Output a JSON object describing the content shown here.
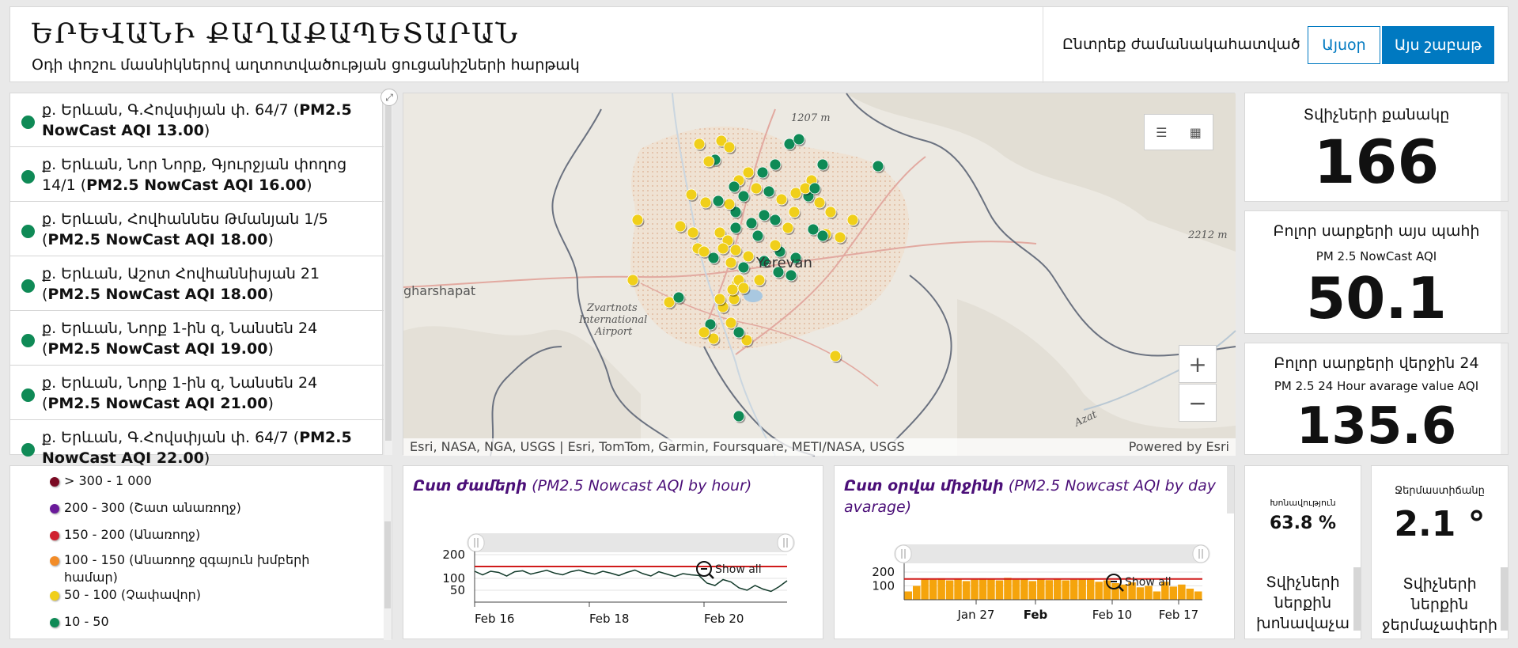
{
  "header": {
    "title": "ԵՐԵՎԱՆԻ ՔԱՂԱՔԱՊԵՏԱՐԱՆ",
    "subtitle": "Օդի փոշու մասնիկներով աղտոտվածության ցուցանիշների հարթակ",
    "period_label": "Ընտրեք ժամանակահատված",
    "today_label": "Այսօր",
    "week_label": "Այս շաբաթ"
  },
  "stations": [
    {
      "name": "ք. Երևան, Գ.Հովսփյան փ. 64/7 (",
      "aqi": "PM2.5 NowCast AQI 13.00",
      "close": ")"
    },
    {
      "name": "ք. Երևան, Նոր Նորք, Գյուրջյան փողոց 14/1 (",
      "aqi": "PM2.5 NowCast AQI 16.00",
      "close": ")"
    },
    {
      "name": "ք. Երևան, Հովհաննես Թմանյան 1/5 (",
      "aqi": "PM2.5 NowCast AQI 18.00",
      "close": ")"
    },
    {
      "name": "ք. Երևան, Աշոտ Հովհաննիսյան 21 (",
      "aqi": "PM2.5 NowCast AQI 18.00",
      "close": ")"
    },
    {
      "name": "ք. Երևան, Նորք 1-ին զ, Նանսեն 24 (",
      "aqi": "PM2.5 NowCast AQI 19.00",
      "close": ")"
    },
    {
      "name": "ք. Երևան, Նորք 1-ին զ, Նանսեն 24 (",
      "aqi": "PM2.5 NowCast AQI 21.00",
      "close": ")"
    },
    {
      "name": "ք. Երևան, Գ.Հովսփյան փ. 64/7 (",
      "aqi": "PM2.5 NowCast AQI 22.00",
      "close": ")"
    }
  ],
  "map": {
    "labels": {
      "elev1": "1207 m",
      "elev2": "2212 m",
      "city": "Yerevan",
      "town": "gharshapat",
      "airport1": "Zvartnots",
      "airport2": "International",
      "airport3": "Airport",
      "river": "Azat"
    },
    "attribution": "Esri, NASA, NGA, USGS | Esri, TomTom, Garmin, Foursquare, METI/NASA, USGS",
    "powered_by": "Powered by Esri",
    "zoom_in": "+",
    "zoom_out": "−",
    "colors": {
      "green": "#0f8a56",
      "yellow": "#f0cf1a"
    }
  },
  "indicators": {
    "sensor_count": {
      "title": "Տվիչների քանակը",
      "value": "166"
    },
    "current_aqi": {
      "title": "Բոլոր սարքերի այս պահի",
      "subtitle": "PM 2.5 NowCast AQI",
      "value": "50.1"
    },
    "avg24": {
      "title": "Բոլոր սարքերի վերջին 24",
      "subtitle": "PM 2.5 24 Hour avarage value AQI",
      "value": "135.6"
    },
    "humidity": {
      "title": "Խոնավություն",
      "value": "63.8 %",
      "footer": [
        "Տվիչների",
        "ներքին",
        "խոնավաչա"
      ]
    },
    "temperature": {
      "title": "Ջերմաստիճանը",
      "value": "2.1 °",
      "footer": [
        "Տվիչների",
        "ներքին",
        "ջերմաչափերի"
      ]
    }
  },
  "legend": [
    {
      "label": "> 300 - 1 000",
      "color": "#7a0a23"
    },
    {
      "label": "200 - 300 (Շատ անառողջ)",
      "color": "#6a1a9a"
    },
    {
      "label": "150 - 200 (Անառողջ)",
      "color": "#d0202f"
    },
    {
      "label": "100 - 150 (Անառողջ զգայուն խմբերի",
      "label2": "համար)",
      "color": "#f28c28"
    },
    {
      "label": "50 - 100 (Չափավոր)",
      "color": "#f0cf1a"
    },
    {
      "label": "10 - 50",
      "color": "#0f8a56"
    }
  ],
  "chart_data": [
    {
      "type": "line",
      "title_bold": "Ըստ ժամերի",
      "title_rest": " (PM2.5 Nowcast AQI by hour)",
      "x_ticks": [
        "Feb 16",
        "Feb 18",
        "Feb 20"
      ],
      "y_ticks": [
        200,
        100,
        50
      ],
      "threshold": 150,
      "show_all": "Show all",
      "values": [
        130,
        115,
        130,
        125,
        110,
        128,
        132,
        118,
        126,
        134,
        122,
        115,
        128,
        135,
        125,
        118,
        130,
        122,
        112,
        125,
        135,
        120,
        110,
        128,
        118,
        108,
        120,
        115,
        112,
        80,
        70,
        95,
        85,
        60,
        50,
        70,
        55,
        45,
        65,
        90
      ],
      "line_color": "#123a2a",
      "threshold_color": "#d01a1a"
    },
    {
      "type": "bar",
      "title_bold": "Ըստ օրվա միջինի",
      "title_rest": " (PM2.5 Nowcast AQI by day avarage)",
      "x_ticks": [
        "Jan 27",
        "Feb",
        "Feb 10",
        "Feb 17"
      ],
      "y_ticks": [
        200,
        100
      ],
      "threshold": 150,
      "show_all": "Show all",
      "values": [
        60,
        100,
        150,
        145,
        155,
        140,
        150,
        135,
        145,
        155,
        150,
        140,
        158,
        145,
        150,
        135,
        148,
        142,
        150,
        140,
        145,
        150,
        148,
        130,
        140,
        120,
        110,
        125,
        90,
        100,
        60,
        130,
        95,
        110,
        80,
        60
      ],
      "bar_color": "#f5a40c",
      "threshold_color": "#d01a1a"
    }
  ]
}
